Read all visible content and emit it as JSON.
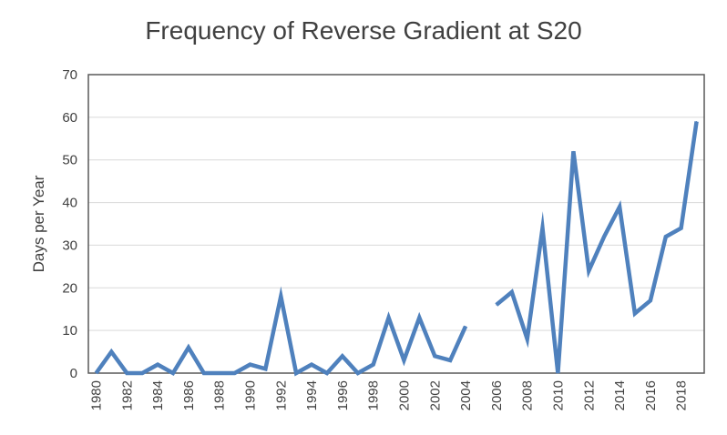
{
  "chart_data": {
    "type": "line",
    "title": "Frequency of Reverse Gradient at S20",
    "xlabel": "",
    "ylabel": "Days per Year",
    "xlim": [
      1979.5,
      2019.5
    ],
    "ylim": [
      0,
      70
    ],
    "y_ticks": [
      0,
      10,
      20,
      30,
      40,
      50,
      60,
      70
    ],
    "x_ticks": [
      1980,
      1982,
      1984,
      1986,
      1988,
      1990,
      1992,
      1994,
      1996,
      1998,
      2000,
      2002,
      2004,
      2006,
      2008,
      2010,
      2012,
      2014,
      2016,
      2018
    ],
    "grid": "horizontal",
    "legend": "none",
    "series": [
      {
        "color": "#4f81bd",
        "x": [
          1980,
          1981,
          1982,
          1983,
          1984,
          1985,
          1986,
          1987,
          1988,
          1989,
          1990,
          1991,
          1992,
          1993,
          1994,
          1995,
          1996,
          1997,
          1998,
          1999,
          2000,
          2001,
          2002,
          2003,
          2004,
          2005,
          2006,
          2007,
          2008,
          2009,
          2010,
          2011,
          2012,
          2013,
          2014,
          2015,
          2016,
          2017,
          2018,
          2019
        ],
        "values": [
          0,
          5,
          0,
          0,
          2,
          0,
          6,
          0,
          0,
          0,
          2,
          1,
          18,
          0,
          2,
          0,
          4,
          0,
          2,
          13,
          3,
          13,
          4,
          3,
          11,
          null,
          16,
          19,
          8,
          34,
          0,
          52,
          24,
          32,
          39,
          14,
          17,
          32,
          34,
          59
        ]
      }
    ]
  }
}
